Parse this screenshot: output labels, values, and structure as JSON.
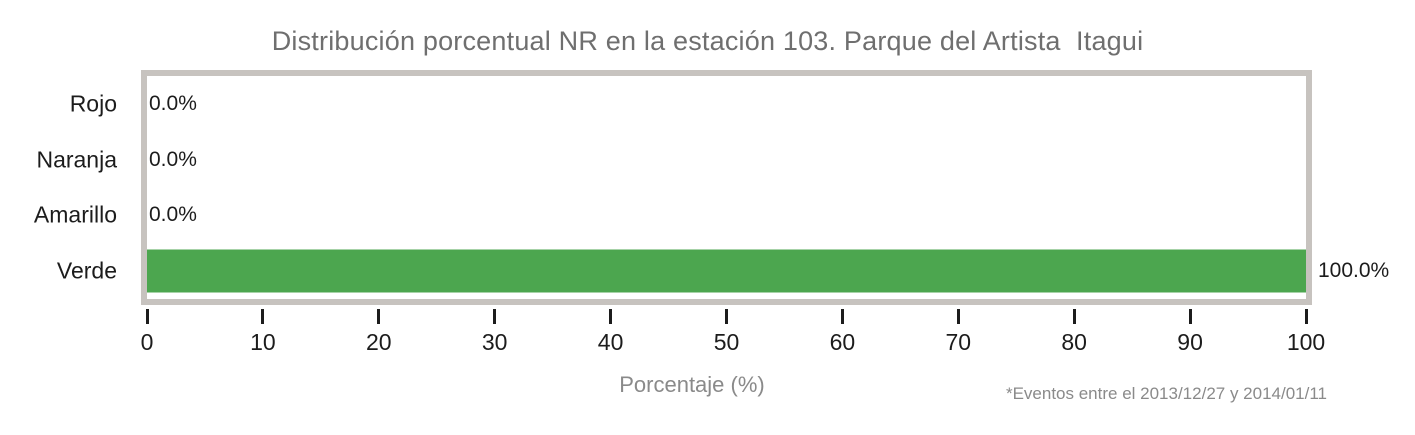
{
  "chart_data": {
    "type": "bar",
    "orientation": "horizontal",
    "title": "Distribución porcentual NR en la estación 103. Parque del Artista  Itagui",
    "categories": [
      "Rojo",
      "Naranja",
      "Amarillo",
      "Verde"
    ],
    "values": [
      0.0,
      0.0,
      0.0,
      100.0
    ],
    "value_labels": [
      "0.0%",
      "0.0%",
      "0.0%",
      "100.0%"
    ],
    "xlabel": "Porcentaje (%)",
    "xlim": [
      0,
      100
    ],
    "x_ticks": [
      0,
      10,
      20,
      30,
      40,
      50,
      60,
      70,
      80,
      90,
      100
    ],
    "footnote": "*Eventos entre el 2013/12/27 y 2014/01/11",
    "bar_color": "#4ca64f",
    "grid": false,
    "legend": "none"
  },
  "colors": {
    "bar_green": "#4ca64f",
    "border_gray": "#c7c3bf",
    "title_gray": "#6f6f6f",
    "text_gray": "#8a8a8a",
    "text_dark": "#1c1c1c",
    "background": "#ffffff"
  }
}
